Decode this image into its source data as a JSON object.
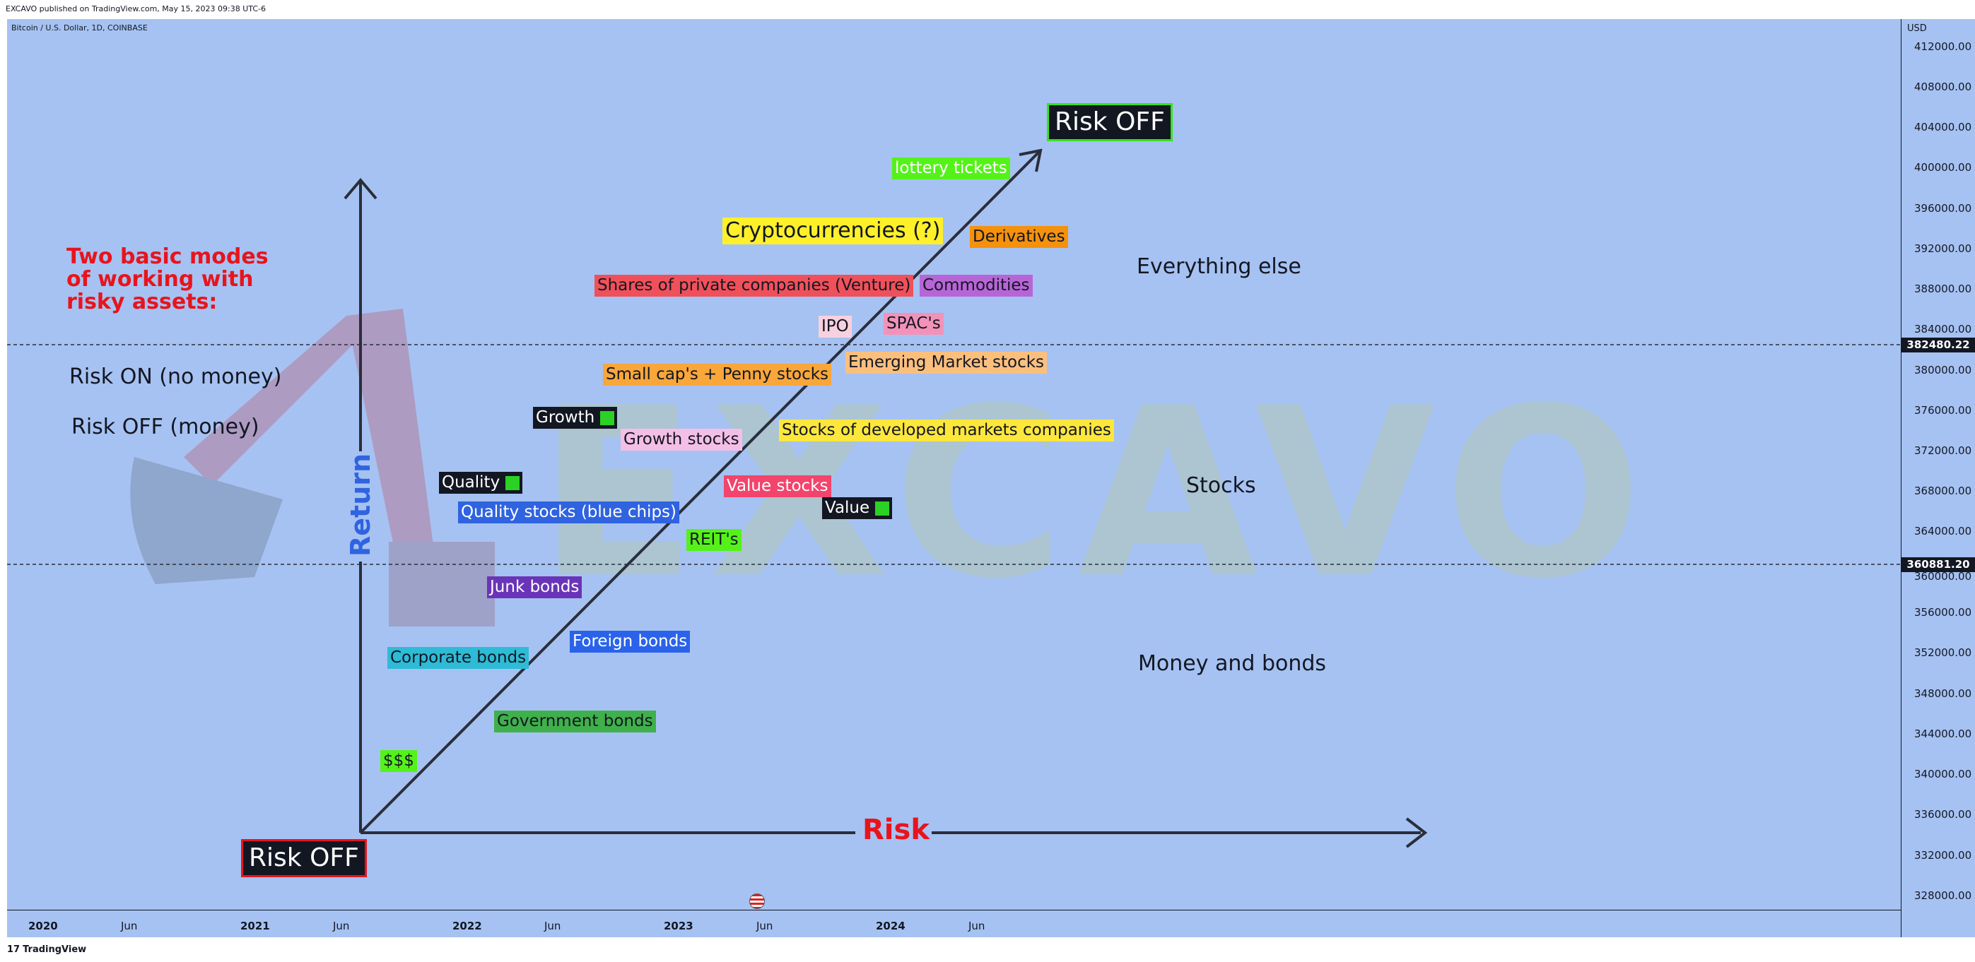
{
  "header": {
    "published": "EXCAVO published on TradingView.com, May 15, 2023 09:38 UTC-6"
  },
  "symbol": "Bitcoin / U.S. Dollar, 1D, COINBASE",
  "currency": "USD",
  "price_axis": [
    "412000.00",
    "408000.00",
    "404000.00",
    "400000.00",
    "396000.00",
    "392000.00",
    "388000.00",
    "384000.00",
    "380000.00",
    "376000.00",
    "372000.00",
    "368000.00",
    "364000.00",
    "360000.00",
    "356000.00",
    "352000.00",
    "348000.00",
    "344000.00",
    "340000.00",
    "336000.00",
    "332000.00",
    "328000.00"
  ],
  "price_tags": {
    "upper": "382480.22",
    "lower": "360881.20"
  },
  "time_axis": [
    "2020",
    "Jun",
    "2021",
    "Jun",
    "2022",
    "Jun",
    "2023",
    "Jun",
    "2024",
    "Jun"
  ],
  "watermark": "EXCAVO",
  "footer": {
    "brand": "TradingView"
  },
  "chart_data": {
    "type": "diagram",
    "x_axis_label": "Risk",
    "y_axis_label": "Return",
    "side_text": {
      "title": "Two basic modes of working with risky assets:",
      "title_lines": [
        "Two basic modes",
        "of working with",
        "risky assets:"
      ],
      "mode_on": "Risk ON (no money)",
      "mode_off": "Risk OFF (money)"
    },
    "corner_labels": {
      "bottom": "Risk OFF",
      "top": "Risk OFF"
    },
    "zones": {
      "top": "Everything else",
      "middle": "Stocks",
      "bottom": "Money and bonds"
    },
    "assets": {
      "lottery": "lottery tickets",
      "crypto": "Cryptocurrencies (?)",
      "derivatives": "Derivatives",
      "venture": "Shares of private companies (Venture)",
      "commodities": "Commodities",
      "ipo": "IPO",
      "spac": "SPAC's",
      "smallcap": "Small cap's + Penny stocks",
      "emerging": "Emerging Market stocks",
      "growth_tag": "Growth",
      "growth_stocks": "Growth stocks",
      "developed": "Stocks of developed markets companies",
      "quality_tag": "Quality",
      "quality_stocks": "Quality stocks (blue chips)",
      "value_stocks": "Value stocks",
      "value_tag": "Value",
      "reits": "REIT's",
      "junk": "Junk bonds",
      "foreign": "Foreign bonds",
      "corporate": "Corporate bonds",
      "government": "Government bonds",
      "cash": "$$$"
    },
    "colors": {
      "background": "#a6c2f2",
      "arrow": "#2a2e3a",
      "risk_text": "#e8141c",
      "return_text": "#2f63e0",
      "lottery": "#55f21a",
      "crypto": "#fff02a",
      "derivatives": "#f5910c",
      "venture": "#f0505a",
      "commodities": "#b765d6",
      "ipo": "#f8d1df",
      "spac": "#f292b8",
      "smallcap": "#f9a63a",
      "emerging": "#fbbf7d",
      "growth_stocks": "#f3bfe6",
      "developed": "#fde73c",
      "quality_stocks": "#2f63e0",
      "value_stocks": "#f2446c",
      "reits": "#55f21a",
      "junk": "#6a34b8",
      "foreign": "#2a63ea",
      "corporate": "#2ebbd6",
      "government": "#3fb04b",
      "cash": "#55f21a"
    }
  }
}
